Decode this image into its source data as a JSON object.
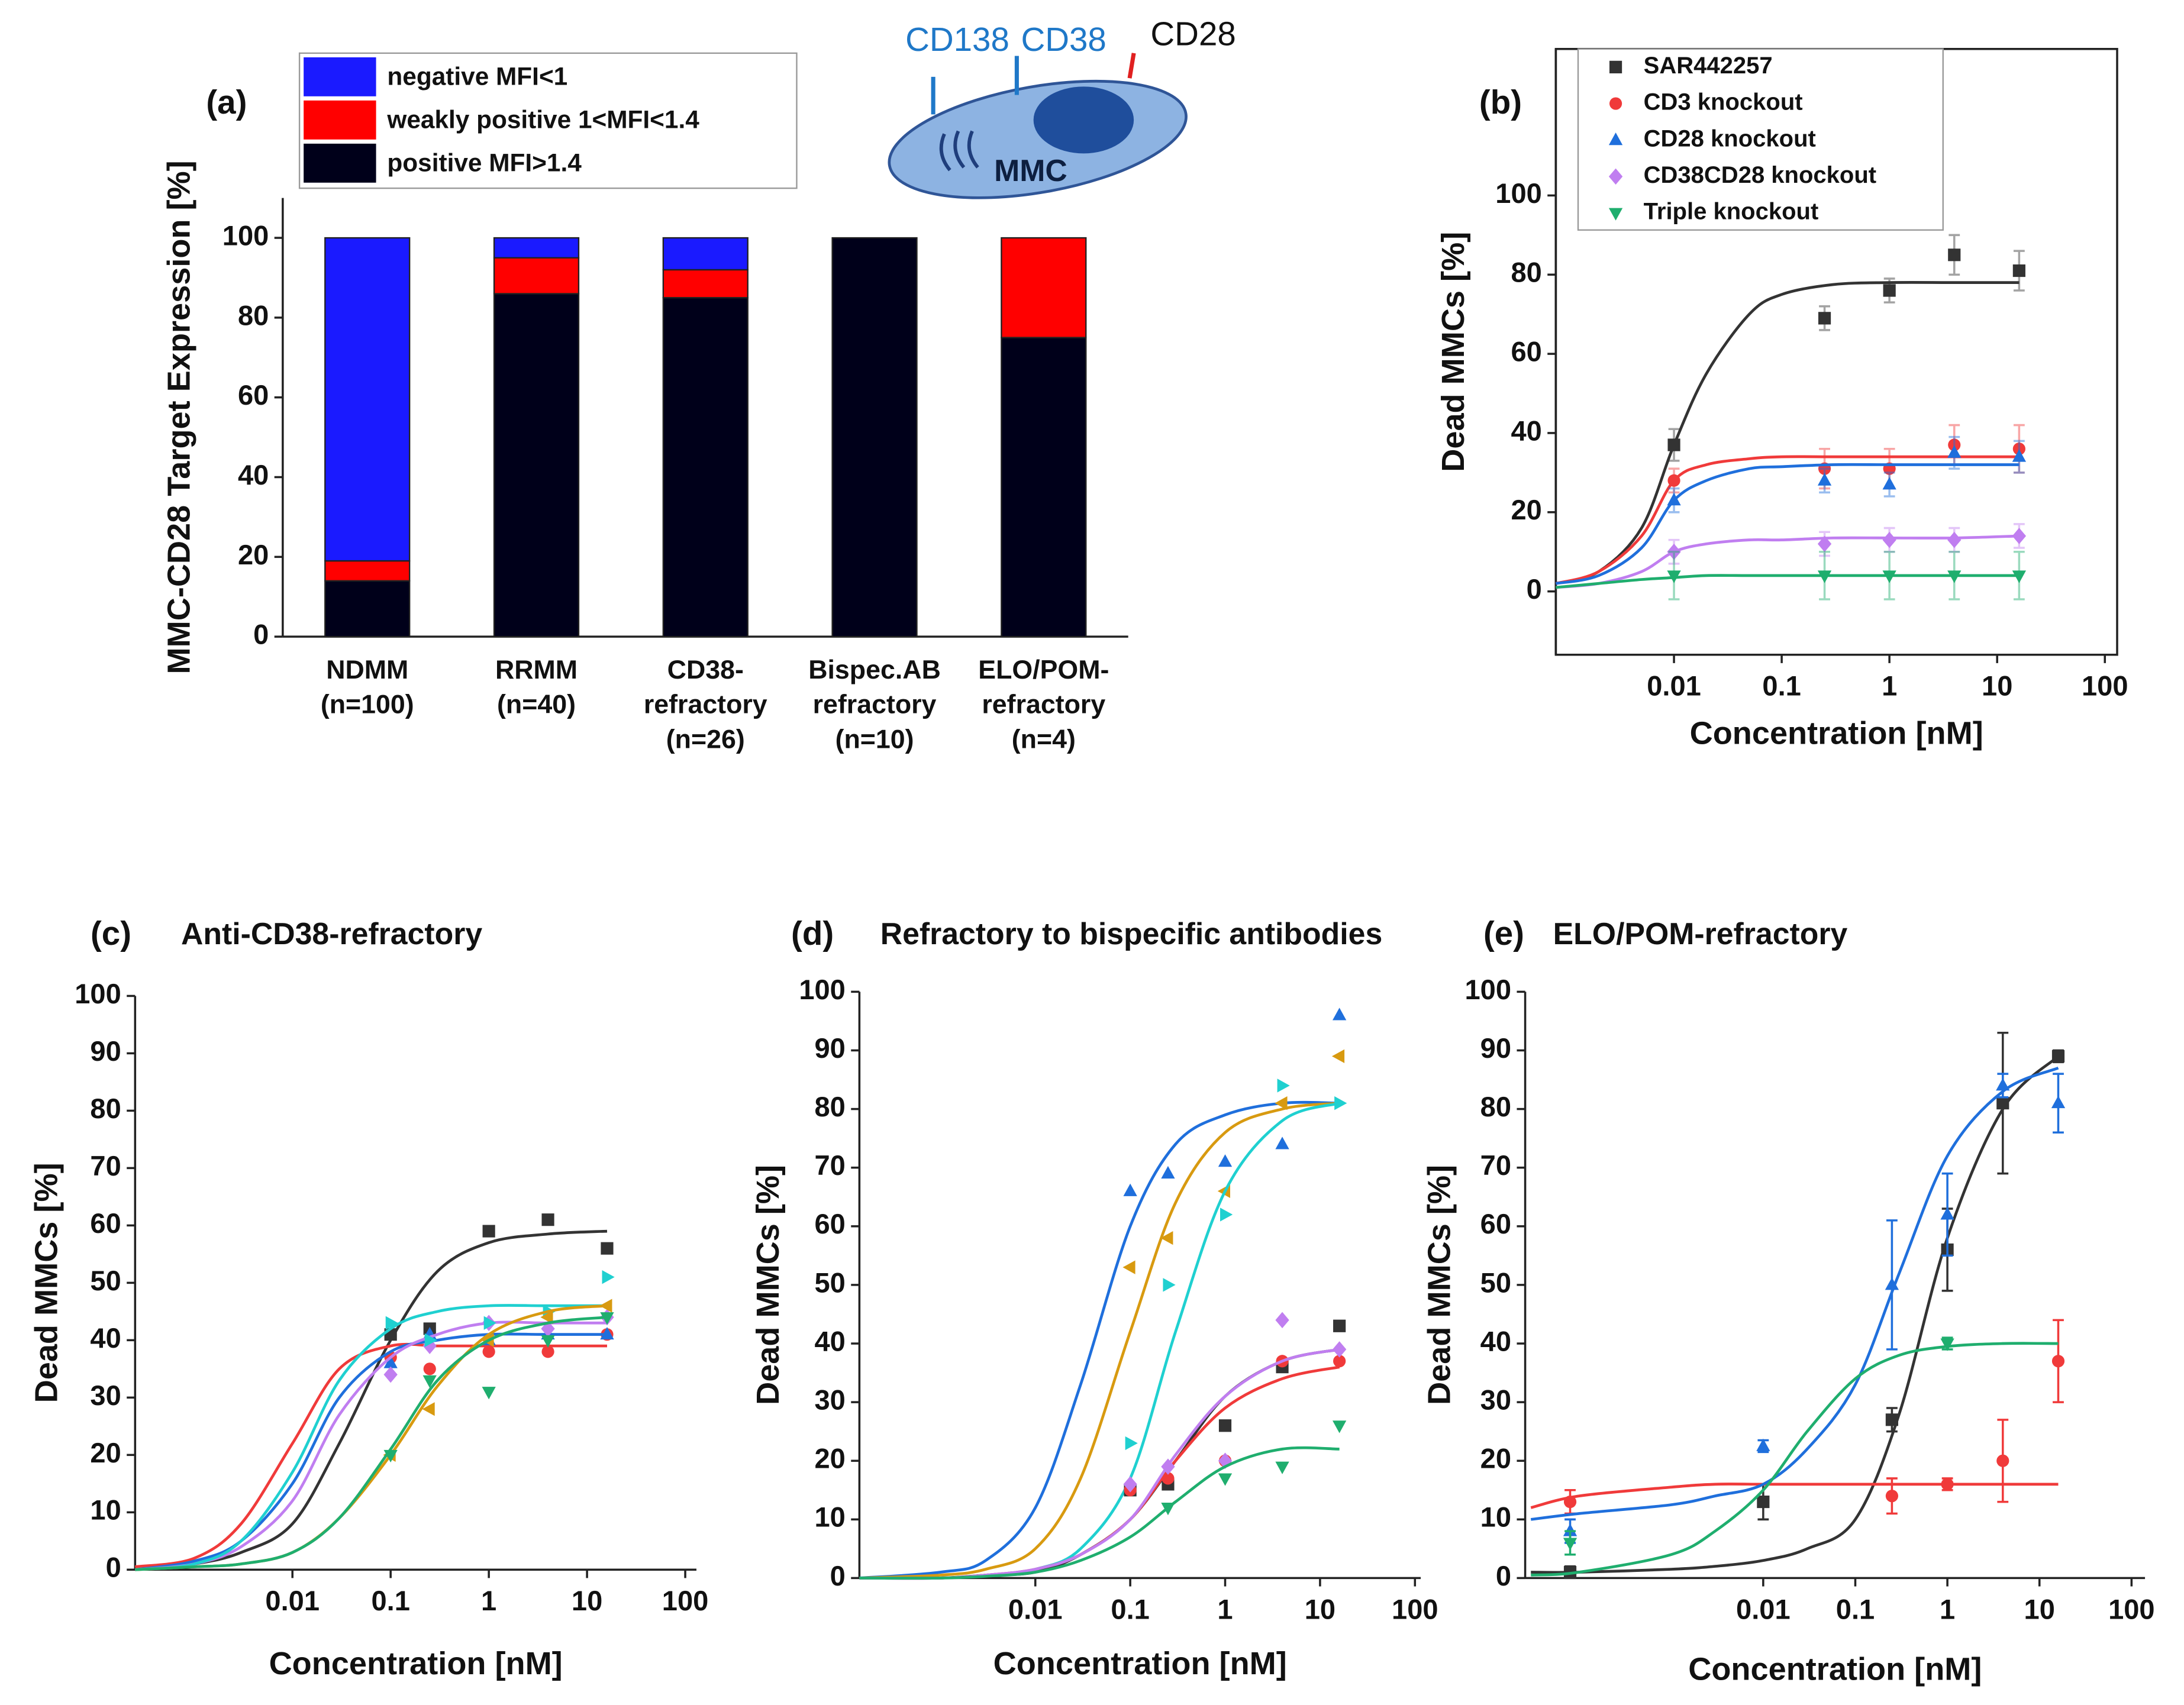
{
  "chart_data": [
    {
      "type": "stacked_bar",
      "panel": "(a)",
      "ylabel": "MMC-CD28 Target Expression [%]",
      "categories": [
        [
          "NDMM",
          "(n=100)"
        ],
        [
          "RRMM",
          "(n=40)"
        ],
        [
          "CD38-",
          "refractory",
          "(n=26)"
        ],
        [
          "Bispec.AB",
          "refractory",
          "(n=10)"
        ],
        [
          "ELO/POM-",
          "refractory",
          "(n=4)"
        ]
      ],
      "series": [
        {
          "name": "positive MFI>1.4",
          "color": "#00001a",
          "values": [
            14,
            86,
            85,
            100,
            75
          ]
        },
        {
          "name": "weakly positive 1<MFI<1.4",
          "color": "#ff0000",
          "values": [
            5,
            9,
            7,
            0,
            25
          ]
        },
        {
          "name": "negative MFI<1",
          "color": "#1a1aff",
          "values": [
            81,
            5,
            8,
            0,
            0
          ]
        }
      ],
      "ylim": [
        0,
        110
      ],
      "yticks": [
        0,
        20,
        40,
        60,
        80,
        100
      ],
      "annotations": [
        "CD138",
        "CD38",
        "CD28",
        "MMC"
      ]
    },
    {
      "type": "scatter",
      "panel": "(b)",
      "xlabel": "Concentration [nM]",
      "ylabel": "Dead MMCs  [%]",
      "xlog": true,
      "frame": true,
      "xlim": [
        0.0008,
        130
      ],
      "xticks": [
        0.01,
        0.1,
        1,
        10,
        100
      ],
      "ylim": [
        -16,
        137
      ],
      "yticks": [
        0,
        20,
        40,
        60,
        80,
        100
      ],
      "fit_x": [
        0.0008,
        0.002,
        0.005,
        0.01,
        0.02,
        0.05,
        0.1,
        0.3,
        1,
        4,
        16
      ],
      "series": [
        {
          "name": "SAR442257",
          "color": "#333333",
          "marker": "square",
          "x": [
            0.01,
            0.25,
            1,
            4,
            16
          ],
          "values": [
            37,
            69,
            76,
            85,
            81
          ],
          "errors": [
            4,
            3,
            3,
            5,
            5
          ],
          "fit": [
            2,
            5,
            16,
            37,
            55,
            70,
            75,
            77.5,
            78,
            78,
            78
          ]
        },
        {
          "name": "CD3 knockout",
          "color": "#f03a3a",
          "marker": "circle",
          "x": [
            0.01,
            0.25,
            1,
            4,
            16
          ],
          "values": [
            28,
            31,
            31,
            37,
            36
          ],
          "errors": [
            3,
            5,
            5,
            5,
            6
          ],
          "fit": [
            2,
            5,
            14,
            28,
            32,
            33.5,
            34,
            34,
            34,
            34,
            34
          ]
        },
        {
          "name": "CD28 knockout",
          "color": "#1f6fdc",
          "marker": "triangle-up",
          "x": [
            0.01,
            0.25,
            1,
            4,
            16
          ],
          "values": [
            23,
            28,
            27,
            35,
            34
          ],
          "errors": [
            3,
            3,
            3,
            4,
            4
          ],
          "fit": [
            2,
            4,
            11,
            23,
            28,
            31,
            31.5,
            32,
            32,
            32,
            32
          ]
        },
        {
          "name": "CD38CD28 knockout",
          "color": "#c07ef0",
          "marker": "diamond",
          "x": [
            0.01,
            0.25,
            1,
            4,
            16
          ],
          "values": [
            10,
            12,
            13,
            13,
            14
          ],
          "errors": [
            3,
            3,
            3,
            3,
            3
          ],
          "fit": [
            1,
            2,
            5,
            10,
            12,
            13,
            13,
            13.5,
            13.5,
            13.5,
            14
          ]
        },
        {
          "name": "Triple knockout",
          "color": "#1fae6e",
          "marker": "triangle-down",
          "x": [
            0.01,
            0.25,
            1,
            4,
            16
          ],
          "values": [
            4,
            4,
            4,
            4,
            4
          ],
          "errors": [
            6,
            6,
            6,
            6,
            6
          ],
          "fit": [
            1,
            2,
            3,
            3.5,
            4,
            4,
            4,
            4,
            4,
            4,
            4
          ]
        }
      ]
    },
    {
      "type": "scatter",
      "panel": "(c)",
      "title": "Anti-CD38-refractory",
      "xlabel": "Concentration [nM]",
      "ylabel": "Dead MMCs [%]",
      "xlog": true,
      "xlim": [
        0.00025,
        130
      ],
      "xticks": [
        0.01,
        0.1,
        1,
        10,
        100
      ],
      "ylim": [
        0,
        100
      ],
      "yticks": [
        0,
        10,
        20,
        30,
        40,
        50,
        60,
        70,
        80,
        90,
        100
      ],
      "fit_x": [
        0.00025,
        0.001,
        0.003,
        0.01,
        0.03,
        0.1,
        0.3,
        1,
        4,
        16
      ],
      "series": [
        {
          "color": "#333333",
          "marker": "square",
          "x": [
            0.1,
            0.25,
            1,
            4,
            16
          ],
          "values": [
            41,
            42,
            59,
            61,
            56
          ],
          "fit": [
            0,
            1,
            3,
            8,
            22,
            40,
            52,
            57,
            58.5,
            59
          ]
        },
        {
          "color": "#f03a3a",
          "marker": "circle",
          "x": [
            0.1,
            0.25,
            1,
            4,
            16
          ],
          "values": [
            37,
            35,
            38,
            38,
            41
          ],
          "fit": [
            0.5,
            2,
            8,
            22,
            35,
            39,
            39,
            39,
            39,
            39
          ]
        },
        {
          "color": "#1f6fdc",
          "marker": "triangle-up",
          "x": [
            0.1,
            0.25,
            1,
            4,
            16
          ],
          "values": [
            36,
            41,
            40,
            41,
            41
          ],
          "fit": [
            0,
            1.5,
            5,
            15,
            30,
            38,
            40,
            41,
            41,
            41
          ]
        },
        {
          "color": "#c07ef0",
          "marker": "diamond",
          "x": [
            0.1,
            0.25,
            1,
            4,
            16
          ],
          "values": [
            34,
            39,
            43,
            42,
            44
          ],
          "fit": [
            0,
            1,
            4,
            12,
            27,
            37,
            41,
            43,
            43,
            43
          ]
        },
        {
          "color": "#1fd0d0",
          "marker": "triangle-right",
          "x": [
            0.1,
            0.25,
            1,
            4,
            16
          ],
          "values": [
            43,
            40,
            43,
            45,
            51
          ],
          "fit": [
            0,
            1,
            5,
            17,
            33,
            42,
            45,
            46,
            46,
            46
          ]
        },
        {
          "color": "#d89a10",
          "marker": "triangle-left",
          "x": [
            0.1,
            0.25,
            1,
            4,
            16
          ],
          "values": [
            20,
            28,
            40,
            44,
            46
          ],
          "fit": [
            0,
            0.5,
            1,
            3,
            9,
            20,
            32,
            41,
            45,
            46
          ]
        },
        {
          "color": "#1fae6e",
          "marker": "triangle-down",
          "x": [
            0.1,
            0.25,
            1,
            4,
            16
          ],
          "values": [
            20,
            33,
            31,
            40,
            44
          ],
          "fit": [
            0,
            0.5,
            1,
            3,
            9,
            21,
            33,
            40,
            43,
            44
          ]
        }
      ]
    },
    {
      "type": "scatter",
      "panel": "(d)",
      "title": "Refractory to bispecific antibodies",
      "xlabel": "Concentration [nM]",
      "ylabel": "Dead MMCs [%]",
      "xlog": true,
      "xlim": [
        0.00014,
        115
      ],
      "xticks": [
        0.01,
        0.1,
        1,
        10,
        100
      ],
      "ylim": [
        0,
        100
      ],
      "yticks": [
        0,
        10,
        20,
        30,
        40,
        50,
        60,
        70,
        80,
        90,
        100
      ],
      "fit_x": [
        0.00014,
        0.001,
        0.003,
        0.01,
        0.03,
        0.1,
        0.3,
        1,
        4,
        16
      ],
      "series": [
        {
          "color": "#1f6fdc",
          "marker": "triangle-up",
          "x": [
            0.1,
            0.25,
            1,
            4,
            16
          ],
          "values": [
            66,
            69,
            71,
            74,
            96
          ],
          "fit": [
            0,
            1,
            3,
            12,
            33,
            60,
            74,
            79,
            81,
            81
          ]
        },
        {
          "color": "#d89a10",
          "marker": "triangle-left",
          "x": [
            0.1,
            0.25,
            1,
            4,
            16
          ],
          "values": [
            53,
            58,
            66,
            81,
            89
          ],
          "fit": [
            0,
            0.5,
            1.5,
            5,
            17,
            42,
            64,
            76,
            80,
            81
          ]
        },
        {
          "color": "#1fd0d0",
          "marker": "triangle-right",
          "x": [
            0.1,
            0.25,
            1,
            4,
            16
          ],
          "values": [
            23,
            50,
            62,
            84,
            81
          ],
          "fit": [
            0,
            0,
            0.5,
            1.5,
            5,
            17,
            42,
            66,
            78,
            81
          ]
        },
        {
          "color": "#333333",
          "marker": "square",
          "x": [
            0.1,
            0.25,
            1,
            4,
            16
          ],
          "values": [
            15,
            16,
            26,
            36,
            43
          ],
          "fit": [
            0,
            0,
            0.5,
            1,
            4,
            10,
            20,
            31,
            37,
            39
          ]
        },
        {
          "color": "#f03a3a",
          "marker": "circle",
          "x": [
            0.1,
            0.25,
            1,
            4,
            16
          ],
          "values": [
            15,
            17,
            20,
            37,
            37
          ],
          "fit": [
            0,
            0,
            0.5,
            1.5,
            4,
            10,
            20,
            29,
            34,
            36
          ]
        },
        {
          "color": "#c07ef0",
          "marker": "diamond",
          "x": [
            0.1,
            0.25,
            1,
            4,
            16
          ],
          "values": [
            16,
            19,
            20,
            44,
            39
          ],
          "fit": [
            0,
            0,
            0.5,
            1.5,
            4,
            10,
            21,
            31,
            37,
            39
          ]
        },
        {
          "color": "#1fae6e",
          "marker": "triangle-down",
          "x": [
            0.25,
            1,
            4,
            16
          ],
          "values": [
            12,
            17,
            19,
            26
          ],
          "fit": [
            0,
            0,
            0.3,
            1,
            3,
            7,
            13,
            19,
            22,
            22
          ]
        }
      ]
    },
    {
      "type": "scatter",
      "panel": "(e)",
      "title": "ELO/POM-refractory",
      "xlabel": "Concentration [nM]",
      "ylabel": "Dead MMCs [%]",
      "xlog": true,
      "xlim": [
        2.6e-05,
        140
      ],
      "xticks": [
        0.01,
        0.1,
        1,
        10,
        100
      ],
      "ylim": [
        0,
        100
      ],
      "yticks": [
        0,
        10,
        20,
        30,
        40,
        50,
        60,
        70,
        80,
        90,
        100
      ],
      "fit_x": [
        3e-05,
        0.0001,
        0.001,
        0.003,
        0.01,
        0.03,
        0.1,
        0.3,
        1,
        4,
        16
      ],
      "series": [
        {
          "color": "#333333",
          "marker": "square",
          "x": [
            8e-05,
            0.01,
            0.25,
            1,
            4,
            16
          ],
          "values": [
            1,
            13,
            27,
            56,
            81,
            89
          ],
          "errors": [
            1,
            3,
            2,
            7,
            12,
            1
          ],
          "fit": [
            1,
            1,
            1.5,
            2,
            3,
            5,
            10,
            28,
            58,
            80,
            89
          ]
        },
        {
          "color": "#f03a3a",
          "marker": "circle",
          "x": [
            8e-05,
            0.25,
            1,
            4,
            16
          ],
          "values": [
            13,
            14,
            16,
            20,
            37
          ],
          "errors": [
            2,
            3,
            1,
            7,
            7
          ],
          "fit": [
            12,
            14,
            15.5,
            16,
            16,
            16,
            16,
            16,
            16,
            16,
            16
          ]
        },
        {
          "color": "#1f6fdc",
          "marker": "triangle-up",
          "x": [
            8e-05,
            0.01,
            0.25,
            1,
            4,
            16
          ],
          "values": [
            8,
            22.5,
            50,
            62,
            84,
            81
          ],
          "errors": [
            2,
            1,
            11,
            7,
            2,
            5
          ],
          "fit": [
            10,
            11,
            12.5,
            14,
            16,
            22,
            33,
            52,
            72,
            83,
            87
          ]
        },
        {
          "color": "#1fae6e",
          "marker": "triangle-down",
          "x": [
            8e-05,
            1
          ],
          "values": [
            6,
            40
          ],
          "errors": [
            2,
            1
          ],
          "fit": [
            0.5,
            1,
            4,
            8,
            15,
            25,
            34,
            38,
            39.5,
            40,
            40
          ]
        }
      ]
    }
  ]
}
